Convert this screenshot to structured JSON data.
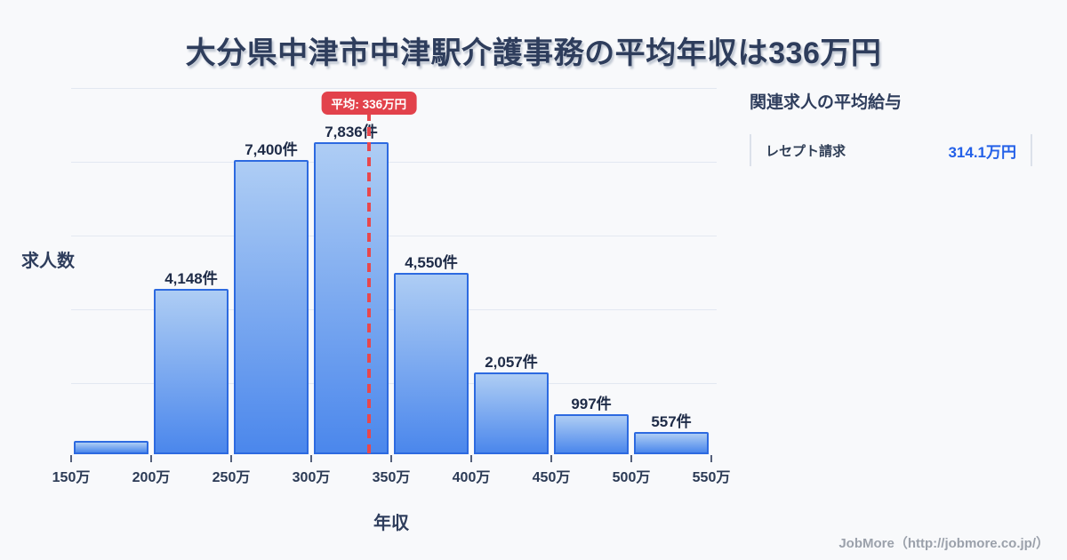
{
  "title": "大分県中津市中津駅介護事務の平均年収は336万円",
  "chart_data": {
    "type": "bar",
    "histogram": true,
    "x_boundaries": [
      "150万",
      "200万",
      "250万",
      "300万",
      "350万",
      "400万",
      "450万",
      "500万",
      "550万"
    ],
    "x_range_value": [
      150,
      550
    ],
    "values": [
      335,
      4148,
      7400,
      7836,
      4550,
      2057,
      997,
      557
    ],
    "bar_labels": [
      "",
      "4,148件",
      "7,400件",
      "7,836件",
      "4,550件",
      "2,057件",
      "997件",
      "557件"
    ],
    "first_bar_value_estimated_from_pixels": true,
    "ylabel": "求人数",
    "xlabel": "年収",
    "ylim": [
      0,
      9200
    ],
    "grid": true,
    "legend": "none",
    "average_line": {
      "value": 336,
      "label": "平均: 336万円"
    }
  },
  "side_panel": {
    "heading": "関連求人の平均給与",
    "rows": [
      {
        "label": "レセプト請求",
        "value": "314.1万円"
      }
    ]
  },
  "footer": {
    "credit": "JobMore（http://jobmore.co.jp/）"
  },
  "colors": {
    "background": "#f8f9fb",
    "title": "#2e3d5c",
    "bar_gradient_top": "#aecdf4",
    "bar_gradient_bottom": "#4b87ec",
    "bar_border": "#2d6ae0",
    "average_red": "#e8474c",
    "badge_red": "#e2424b",
    "value_blue": "#2360e8",
    "gridline": "#e3e8f1",
    "footer_gray": "#9ba1ab"
  }
}
